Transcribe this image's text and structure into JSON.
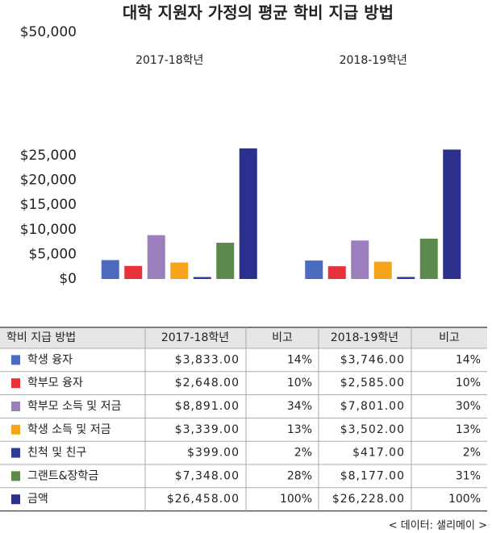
{
  "chart_data": {
    "type": "bar",
    "title": "대학 지원자 가정의 평균 학비 지급 방법",
    "categories": [
      "2017-18학년",
      "2018-19학년"
    ],
    "series": [
      {
        "name": "학생 융자",
        "color": "#4a6bbf",
        "values": [
          3833,
          3746
        ]
      },
      {
        "name": "학부모 융자",
        "color": "#e8303a",
        "values": [
          2648,
          2585
        ]
      },
      {
        "name": "학부모 소득 및 저금",
        "color": "#9b80bd",
        "values": [
          8891,
          7801
        ]
      },
      {
        "name": "학생 소득 및 저금",
        "color": "#f5a41c",
        "values": [
          3339,
          3502
        ]
      },
      {
        "name": "친척 및 친구",
        "color": "#2e3a98",
        "values": [
          399,
          417
        ]
      },
      {
        "name": "그랜트&장학금",
        "color": "#5b8b4c",
        "values": [
          7348,
          8177
        ]
      },
      {
        "name": "금액",
        "color": "#2b2f8e",
        "values": [
          26458,
          26228
        ]
      }
    ],
    "ylim": [
      0,
      50000
    ],
    "yticks": [
      {
        "value": 0,
        "label": "$0"
      },
      {
        "value": 5000,
        "label": "$5,000"
      },
      {
        "value": 10000,
        "label": "$10,000"
      },
      {
        "value": 15000,
        "label": "$15,000"
      },
      {
        "value": 20000,
        "label": "$20,000"
      },
      {
        "value": 25000,
        "label": "$25,000"
      },
      {
        "value": 50000,
        "label": "$50,000"
      }
    ],
    "grid": false
  },
  "table": {
    "header": "학비 지급 방법",
    "note_header": "비고",
    "rows": [
      [
        "$3,833.00",
        "14%",
        "$3,746.00",
        "14%"
      ],
      [
        "$2,648.00",
        "10%",
        "$2,585.00",
        "10%"
      ],
      [
        "$8,891.00",
        "34%",
        "$7,801.00",
        "30%"
      ],
      [
        "$3,339.00",
        "13%",
        "$3,502.00",
        "13%"
      ],
      [
        "$399.00",
        "2%",
        "$417.00",
        "2%"
      ],
      [
        "$7,348.00",
        "28%",
        "$8,177.00",
        "31%"
      ],
      [
        "$26,458.00",
        "100%",
        "$26,228.00",
        "100%"
      ]
    ]
  },
  "source": "< 데이터: 샐리메이 >"
}
